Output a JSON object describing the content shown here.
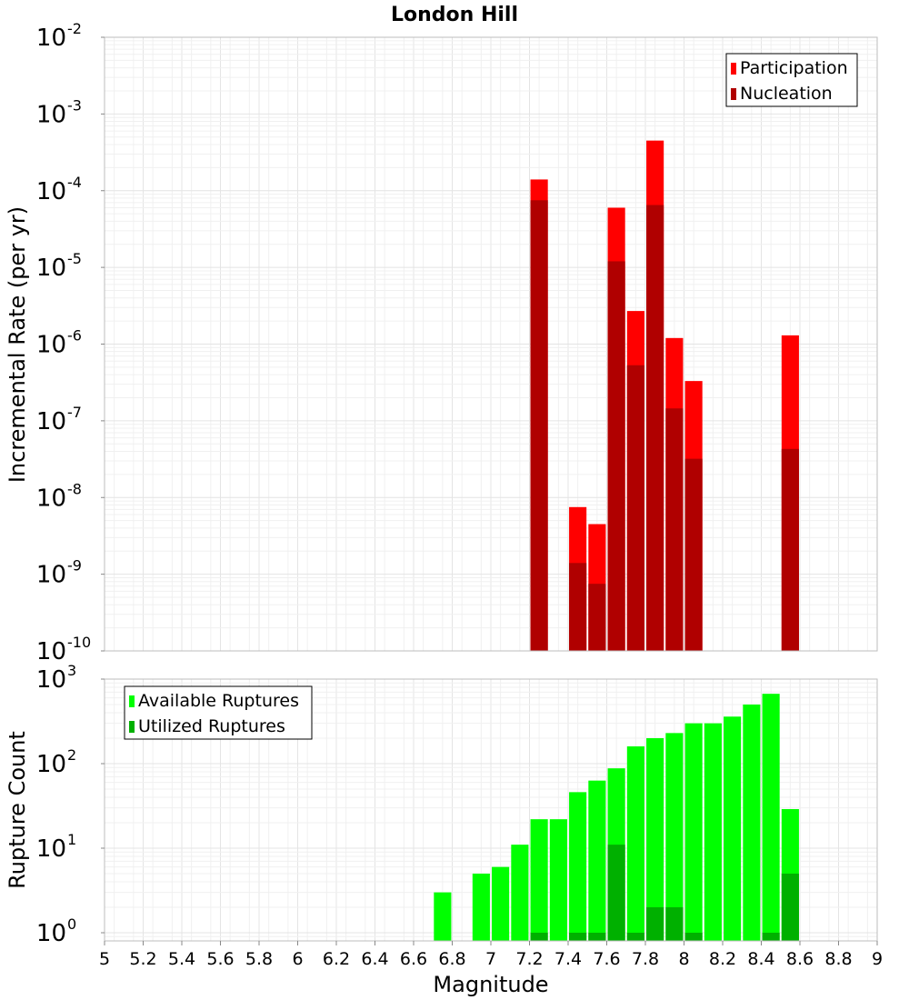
{
  "title": "London Hill",
  "x_axis": {
    "label": "Magnitude",
    "range": [
      5,
      9
    ],
    "ticks": [
      "5",
      "5.2",
      "5.4",
      "5.6",
      "5.8",
      "6",
      "6.2",
      "6.4",
      "6.6",
      "6.8",
      "7",
      "7.2",
      "7.4",
      "7.6",
      "7.8",
      "8",
      "8.2",
      "8.4",
      "8.6",
      "8.8",
      "9"
    ]
  },
  "colors": {
    "participation": "#ff0000",
    "nucleation": "#b00000",
    "available": "#00ff00",
    "utilized": "#00b000",
    "grid": "#e4e4e4",
    "frame": "#bdbdbd"
  },
  "chart_data": [
    {
      "type": "bar",
      "panel": "rates",
      "ylabel": "Incremental Rate (per yr)",
      "log_y": true,
      "ylim": [
        1e-10,
        0.01
      ],
      "y_tick_exponents": [
        "-10",
        "-9",
        "-8",
        "-7",
        "-6",
        "-5",
        "-4",
        "-3",
        "-2"
      ],
      "legend_position": "top-right",
      "series": [
        {
          "name": "Participation",
          "points": [
            {
              "x": 7.25,
              "y": 0.00014
            },
            {
              "x": 7.45,
              "y": 7.5e-09
            },
            {
              "x": 7.55,
              "y": 4.5e-09
            },
            {
              "x": 7.65,
              "y": 6e-05
            },
            {
              "x": 7.75,
              "y": 2.7e-06
            },
            {
              "x": 7.85,
              "y": 0.00045
            },
            {
              "x": 7.95,
              "y": 1.2e-06
            },
            {
              "x": 8.05,
              "y": 3.3e-07
            },
            {
              "x": 8.55,
              "y": 1.3e-06
            }
          ]
        },
        {
          "name": "Nucleation",
          "points": [
            {
              "x": 7.25,
              "y": 7.5e-05
            },
            {
              "x": 7.45,
              "y": 1.4e-09
            },
            {
              "x": 7.55,
              "y": 7.5e-10
            },
            {
              "x": 7.65,
              "y": 1.2e-05
            },
            {
              "x": 7.75,
              "y": 5.3e-07
            },
            {
              "x": 7.85,
              "y": 6.5e-05
            },
            {
              "x": 7.95,
              "y": 1.45e-07
            },
            {
              "x": 8.05,
              "y": 3.2e-08
            },
            {
              "x": 8.55,
              "y": 4.3e-08
            }
          ]
        }
      ]
    },
    {
      "type": "bar",
      "panel": "counts",
      "ylabel": "Rupture Count",
      "log_y": true,
      "ylim": [
        0.8,
        1000
      ],
      "y_tick_exponents": [
        "0",
        "1",
        "2",
        "3"
      ],
      "legend_position": "top-left",
      "series": [
        {
          "name": "Available Ruptures",
          "points": [
            {
              "x": 6.75,
              "y": 3
            },
            {
              "x": 6.95,
              "y": 5
            },
            {
              "x": 7.05,
              "y": 6
            },
            {
              "x": 7.15,
              "y": 11
            },
            {
              "x": 7.25,
              "y": 22
            },
            {
              "x": 7.35,
              "y": 22
            },
            {
              "x": 7.45,
              "y": 46
            },
            {
              "x": 7.55,
              "y": 63
            },
            {
              "x": 7.65,
              "y": 88
            },
            {
              "x": 7.75,
              "y": 160
            },
            {
              "x": 7.85,
              "y": 200
            },
            {
              "x": 7.95,
              "y": 230
            },
            {
              "x": 8.05,
              "y": 300
            },
            {
              "x": 8.15,
              "y": 300
            },
            {
              "x": 8.25,
              "y": 360
            },
            {
              "x": 8.35,
              "y": 500
            },
            {
              "x": 8.45,
              "y": 670
            },
            {
              "x": 8.55,
              "y": 29
            }
          ]
        },
        {
          "name": "Utilized Ruptures",
          "points": [
            {
              "x": 7.25,
              "y": 1
            },
            {
              "x": 7.45,
              "y": 1
            },
            {
              "x": 7.55,
              "y": 1
            },
            {
              "x": 7.65,
              "y": 11
            },
            {
              "x": 7.75,
              "y": 1
            },
            {
              "x": 7.85,
              "y": 2
            },
            {
              "x": 7.95,
              "y": 2
            },
            {
              "x": 8.05,
              "y": 1
            },
            {
              "x": 8.45,
              "y": 1
            },
            {
              "x": 8.55,
              "y": 5
            }
          ]
        }
      ]
    }
  ]
}
